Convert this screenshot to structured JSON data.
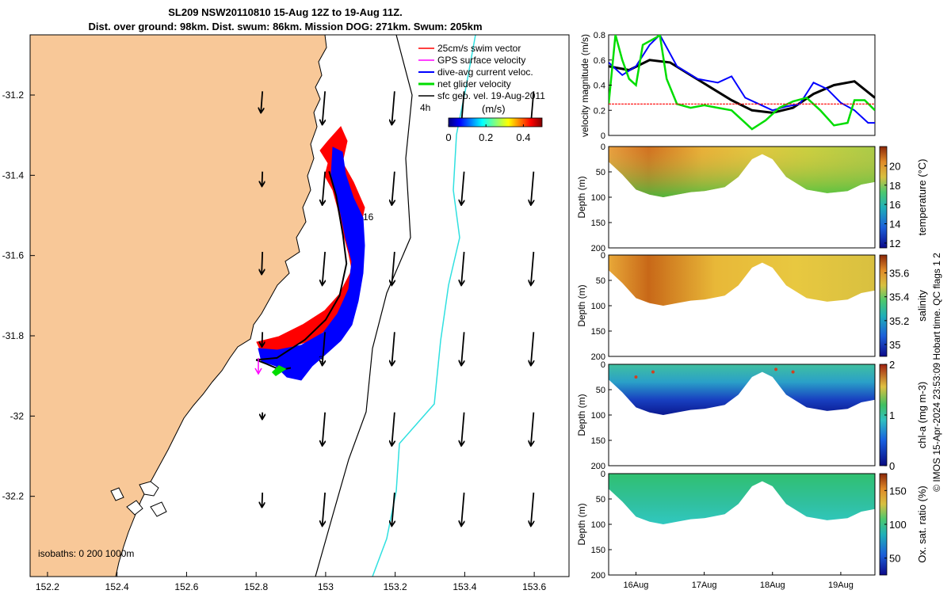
{
  "title": {
    "line1": "SL209 NSW20110810 15-Aug 12Z to 19-Aug 11Z.",
    "line2": "Dist. over ground: 98km. Dist. swum: 86km. Mission DOG: 271km. Swum: 205km"
  },
  "credit": "© IMOS 15-Apr-2024 23:53:09 Hobart time. QC flags 1  2",
  "colors": {
    "land": "#f8c898",
    "black": "#000000",
    "red": "#ff0000",
    "blue": "#0000ff",
    "green": "#00dd00",
    "magenta": "#ff00ff",
    "cyan": "#30e0e0"
  },
  "chart_data": [
    {
      "type": "map",
      "id": "track-map",
      "x_ticks": [
        "152.2",
        "152.4",
        "152.6",
        "152.8",
        "153",
        "153.2",
        "153.4",
        "153.6"
      ],
      "y_ticks": [
        "-31.2",
        "-31.4",
        "-31.6",
        "-31.8",
        "-32",
        "-32.2"
      ],
      "xlim": [
        152.15,
        153.7
      ],
      "ylim": [
        -32.4,
        -31.05
      ],
      "legend": [
        {
          "label": "25cm/s swim vector",
          "color": "#ff0000"
        },
        {
          "label": "GPS surface velocity",
          "color": "#ff00ff"
        },
        {
          "label": "dive-avg current veloc.",
          "color": "#0000ff"
        },
        {
          "label": "net glider velocity",
          "color": "#00dd00"
        },
        {
          "label": "sfc geo. vel. 19-Aug-2011",
          "color": "#000000"
        }
      ],
      "colorbar": {
        "label": "(m/s)",
        "ticks": [
          "0",
          "0.2",
          "0.4"
        ],
        "range": [
          0,
          0.5
        ]
      },
      "annotations": [
        "4h",
        "16"
      ],
      "isobaths_label": "isobaths: 0   200  1000m",
      "track": [
        [
          153.01,
          -31.39
        ],
        [
          153.03,
          -31.45
        ],
        [
          153.05,
          -31.55
        ],
        [
          153.06,
          -31.62
        ],
        [
          153.04,
          -31.7
        ],
        [
          153.0,
          -31.76
        ],
        [
          152.94,
          -31.81
        ],
        [
          152.86,
          -31.855
        ],
        [
          152.8,
          -31.86
        ],
        [
          152.83,
          -31.87
        ],
        [
          152.87,
          -31.885
        ],
        [
          152.9,
          -31.88
        ]
      ],
      "geo_vectors_grid": {
        "lons": [
          152.8,
          152.98,
          153.18,
          153.38,
          153.58
        ],
        "lats": [
          -31.25,
          -31.45,
          -31.65,
          -31.85,
          -32.05,
          -32.25
        ]
      }
    },
    {
      "type": "line",
      "id": "velocity-panel",
      "ylabel": "velocity magnitude (m/s)",
      "y_ticks": [
        "0",
        "0.2",
        "0.4",
        "0.6",
        "0.8"
      ],
      "ylim": [
        0,
        0.8
      ],
      "xlim": [
        15.6,
        19.5
      ],
      "series": [
        {
          "name": "sfc geo. vel.",
          "color": "#000000",
          "x": [
            15.6,
            15.9,
            16.2,
            16.5,
            16.8,
            17.1,
            17.4,
            17.7,
            18.0,
            18.3,
            18.6,
            18.9,
            19.2,
            19.5
          ],
          "y": [
            0.55,
            0.52,
            0.6,
            0.58,
            0.48,
            0.38,
            0.28,
            0.2,
            0.18,
            0.22,
            0.33,
            0.4,
            0.43,
            0.3
          ]
        },
        {
          "name": "dive-avg current veloc.",
          "color": "#0000ff",
          "x": [
            15.6,
            15.8,
            16.0,
            16.2,
            16.35,
            16.6,
            16.9,
            17.2,
            17.4,
            17.6,
            17.8,
            18.0,
            18.2,
            18.4,
            18.6,
            18.8,
            19.0,
            19.2,
            19.4,
            19.5
          ],
          "y": [
            0.58,
            0.48,
            0.55,
            0.72,
            0.8,
            0.55,
            0.45,
            0.42,
            0.47,
            0.3,
            0.25,
            0.2,
            0.23,
            0.25,
            0.42,
            0.37,
            0.26,
            0.2,
            0.1,
            0.1
          ]
        },
        {
          "name": "net glider velocity",
          "color": "#00dd00",
          "x": [
            15.6,
            15.7,
            15.8,
            15.9,
            16.0,
            16.1,
            16.3,
            16.35,
            16.45,
            16.6,
            16.8,
            17.0,
            17.2,
            17.4,
            17.6,
            17.7,
            17.9,
            18.1,
            18.3,
            18.5,
            18.7,
            18.9,
            19.1,
            19.2,
            19.35,
            19.5
          ],
          "y": [
            0.25,
            0.8,
            0.6,
            0.45,
            0.4,
            0.72,
            0.78,
            0.8,
            0.45,
            0.25,
            0.22,
            0.24,
            0.22,
            0.2,
            0.1,
            0.05,
            0.12,
            0.22,
            0.27,
            0.3,
            0.2,
            0.08,
            0.1,
            0.28,
            0.28,
            0.2
          ]
        },
        {
          "name": "25cm/s swim vector",
          "color": "#ff0000",
          "x": [
            15.6,
            19.5
          ],
          "y": [
            0.25,
            0.25
          ]
        }
      ]
    },
    {
      "type": "heatmap",
      "id": "temperature-panel",
      "ylabel": "Depth (m)",
      "y_ticks": [
        "0",
        "50",
        "100",
        "150",
        "200"
      ],
      "ylim": [
        0,
        200
      ],
      "colorbar_label": "temperature (°C)",
      "colorbar_ticks": [
        "12",
        "14",
        "16",
        "18",
        "20"
      ],
      "crange": [
        11.5,
        22
      ]
    },
    {
      "type": "heatmap",
      "id": "salinity-panel",
      "ylabel": "Depth (m)",
      "y_ticks": [
        "0",
        "50",
        "100",
        "150",
        "200"
      ],
      "ylim": [
        0,
        200
      ],
      "colorbar_label": "salinity",
      "colorbar_ticks": [
        "35",
        "35.2",
        "35.4",
        "35.6"
      ],
      "crange": [
        34.9,
        35.75
      ]
    },
    {
      "type": "heatmap",
      "id": "chla-panel",
      "ylabel": "Depth (m)",
      "y_ticks": [
        "0",
        "50",
        "100",
        "150",
        "200"
      ],
      "ylim": [
        0,
        200
      ],
      "colorbar_label": "chl-a (mg m-3)",
      "colorbar_ticks": [
        "0",
        "1",
        "2"
      ],
      "crange": [
        0,
        2
      ]
    },
    {
      "type": "heatmap",
      "id": "oxygen-panel",
      "ylabel": "Depth (m)",
      "y_ticks": [
        "0",
        "50",
        "100",
        "150",
        "200"
      ],
      "ylim": [
        0,
        200
      ],
      "colorbar_label": "Ox. sat. ratio (%)",
      "colorbar_ticks": [
        "50",
        "100",
        "150"
      ],
      "crange": [
        25,
        175
      ],
      "x_ticks": [
        "16Aug",
        "17Aug",
        "18Aug",
        "19Aug"
      ],
      "x_tick_values": [
        16,
        17,
        18,
        19
      ],
      "xlim": [
        15.6,
        19.5
      ]
    }
  ]
}
